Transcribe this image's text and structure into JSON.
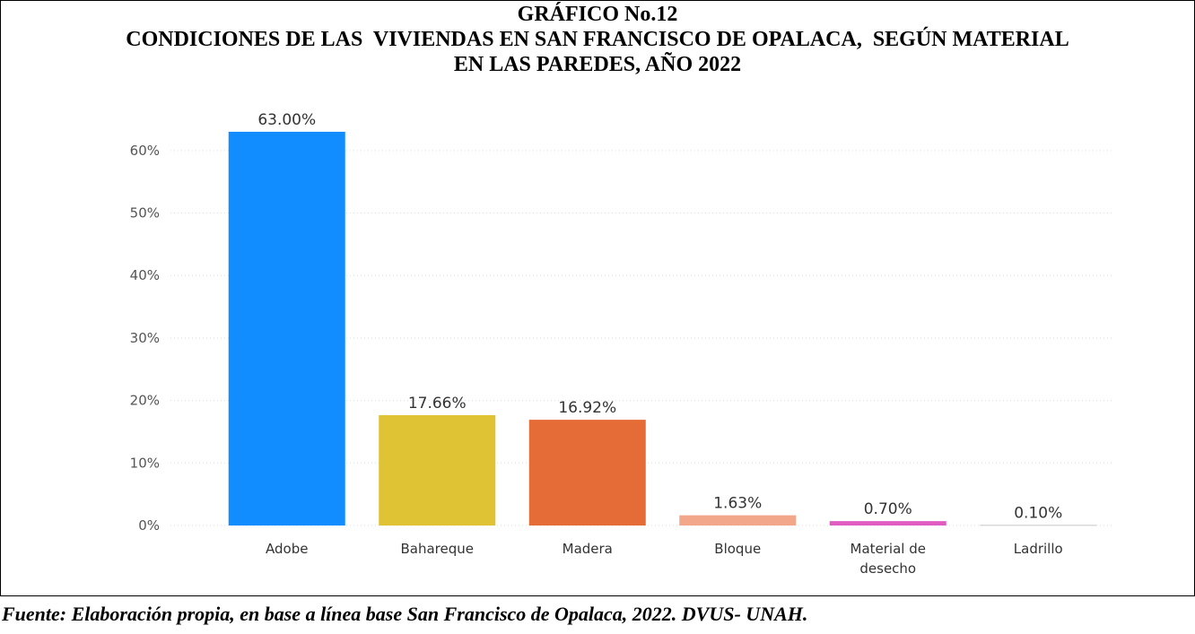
{
  "chart_data": {
    "type": "bar",
    "title": "GRÁFICO No.12",
    "subtitle": [
      "CONDICIONES DE LAS  VIVIENDAS EN SAN FRANCISCO DE OPALACA,  SEGÚN MATERIAL",
      "EN LAS PAREDES, AÑO 2022"
    ],
    "categories": [
      "Adobe",
      "Bahareque",
      "Madera",
      "Bloque",
      "Material de desecho",
      "Ladrillo"
    ],
    "values": [
      63.0,
      17.66,
      16.92,
      1.63,
      0.7,
      0.1
    ],
    "value_labels": [
      "63.00%",
      "17.66%",
      "16.92%",
      "1.63%",
      "0.70%",
      "0.10%"
    ],
    "colors": [
      "#118dff",
      "#e0c334",
      "#e66c37",
      "#f2a68a",
      "#e05cc0",
      "#c8c8c8"
    ],
    "ylim": [
      0,
      65
    ],
    "yticks": [
      {
        "value": 0,
        "label": "0%"
      },
      {
        "value": 10,
        "label": "10%"
      },
      {
        "value": 20,
        "label": "20%"
      },
      {
        "value": 30,
        "label": "30%"
      },
      {
        "value": 40,
        "label": "40%"
      },
      {
        "value": 50,
        "label": "50%"
      },
      {
        "value": 60,
        "label": "60%"
      }
    ],
    "grid": true,
    "footnote": "Fuente: Elaboración propia, en base a línea base San Francisco de Opalaca, 2022. DVUS- UNAH."
  }
}
